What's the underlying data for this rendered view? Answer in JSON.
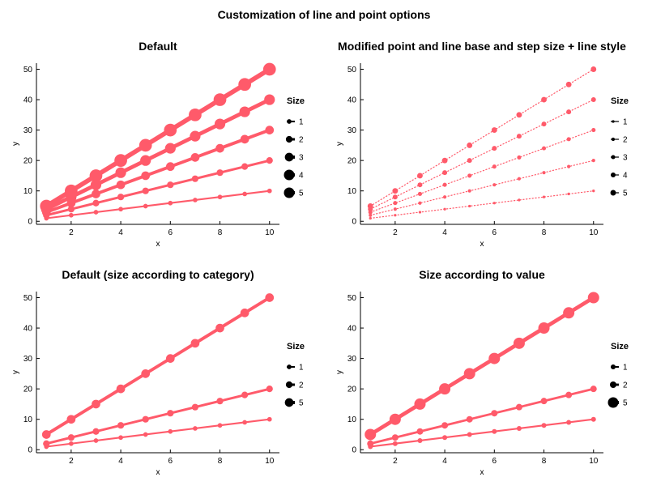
{
  "title": "Customization of line and point options",
  "colors": {
    "series": "#ff5a6a",
    "axis": "#000000",
    "legend_marker": "#000000"
  },
  "chart_data": [
    {
      "type": "line",
      "title": "Default",
      "xlabel": "x",
      "ylabel": "y",
      "xlim": [
        0.6,
        10.4
      ],
      "ylim": [
        -1,
        52
      ],
      "xticks": [
        2,
        4,
        6,
        8,
        10
      ],
      "yticks": [
        0,
        10,
        20,
        30,
        40,
        50
      ],
      "grid": false,
      "x": [
        1,
        2,
        3,
        4,
        5,
        6,
        7,
        8,
        9,
        10
      ],
      "line_style": "solid",
      "legend": {
        "title": "Size",
        "position": "right",
        "entries": [
          "1",
          "2",
          "3",
          "4",
          "5"
        ],
        "sizes": [
          1,
          2,
          3,
          4,
          5
        ]
      },
      "series": [
        {
          "size": 1,
          "values": [
            1,
            2,
            3,
            4,
            5,
            6,
            7,
            8,
            9,
            10
          ]
        },
        {
          "size": 2,
          "values": [
            2,
            4,
            6,
            8,
            10,
            12,
            14,
            16,
            18,
            20
          ]
        },
        {
          "size": 3,
          "values": [
            3,
            6,
            9,
            12,
            15,
            18,
            21,
            24,
            27,
            30
          ]
        },
        {
          "size": 4,
          "values": [
            4,
            8,
            12,
            16,
            20,
            24,
            28,
            32,
            36,
            40
          ]
        },
        {
          "size": 5,
          "values": [
            5,
            10,
            15,
            20,
            25,
            30,
            35,
            40,
            45,
            50
          ]
        }
      ]
    },
    {
      "type": "line",
      "title": "Modified point and line base and step size + line style",
      "xlabel": "x",
      "ylabel": "y",
      "xlim": [
        0.6,
        10.4
      ],
      "ylim": [
        -1,
        52
      ],
      "xticks": [
        2,
        4,
        6,
        8,
        10
      ],
      "yticks": [
        0,
        10,
        20,
        30,
        40,
        50
      ],
      "grid": false,
      "x": [
        1,
        2,
        3,
        4,
        5,
        6,
        7,
        8,
        9,
        10
      ],
      "line_style": "dotted",
      "legend": {
        "title": "Size",
        "position": "right",
        "entries": [
          "1",
          "2",
          "3",
          "4",
          "5"
        ],
        "sizes": [
          1,
          2,
          3,
          4,
          5
        ]
      },
      "series": [
        {
          "size": 1,
          "values": [
            1,
            2,
            3,
            4,
            5,
            6,
            7,
            8,
            9,
            10
          ]
        },
        {
          "size": 2,
          "values": [
            2,
            4,
            6,
            8,
            10,
            12,
            14,
            16,
            18,
            20
          ]
        },
        {
          "size": 3,
          "values": [
            3,
            6,
            9,
            12,
            15,
            18,
            21,
            24,
            27,
            30
          ]
        },
        {
          "size": 4,
          "values": [
            4,
            8,
            12,
            16,
            20,
            24,
            28,
            32,
            36,
            40
          ]
        },
        {
          "size": 5,
          "values": [
            5,
            10,
            15,
            20,
            25,
            30,
            35,
            40,
            45,
            50
          ]
        }
      ]
    },
    {
      "type": "line",
      "title": "Default (size according to category)",
      "xlabel": "x",
      "ylabel": "y",
      "xlim": [
        0.6,
        10.4
      ],
      "ylim": [
        -1,
        52
      ],
      "xticks": [
        2,
        4,
        6,
        8,
        10
      ],
      "yticks": [
        0,
        10,
        20,
        30,
        40,
        50
      ],
      "grid": false,
      "x": [
        1,
        2,
        3,
        4,
        5,
        6,
        7,
        8,
        9,
        10
      ],
      "line_style": "solid",
      "legend": {
        "title": "Size",
        "position": "right",
        "entries": [
          "1",
          "2",
          "5"
        ],
        "sizes": [
          1,
          2,
          3
        ]
      },
      "series": [
        {
          "size": 1,
          "values": [
            1,
            2,
            3,
            4,
            5,
            6,
            7,
            8,
            9,
            10
          ]
        },
        {
          "size": 2,
          "values": [
            2,
            4,
            6,
            8,
            10,
            12,
            14,
            16,
            18,
            20
          ]
        },
        {
          "size": 3,
          "values": [
            5,
            10,
            15,
            20,
            25,
            30,
            35,
            40,
            45,
            50
          ]
        }
      ]
    },
    {
      "type": "line",
      "title": "Size according to value",
      "xlabel": "x",
      "ylabel": "y",
      "xlim": [
        0.6,
        10.4
      ],
      "ylim": [
        -1,
        52
      ],
      "xticks": [
        2,
        4,
        6,
        8,
        10
      ],
      "yticks": [
        0,
        10,
        20,
        30,
        40,
        50
      ],
      "grid": false,
      "x": [
        1,
        2,
        3,
        4,
        5,
        6,
        7,
        8,
        9,
        10
      ],
      "line_style": "solid",
      "legend": {
        "title": "Size",
        "position": "right",
        "entries": [
          "1",
          "2",
          "5"
        ],
        "sizes": [
          1,
          2,
          5
        ]
      },
      "series": [
        {
          "size": 1,
          "values": [
            1,
            2,
            3,
            4,
            5,
            6,
            7,
            8,
            9,
            10
          ]
        },
        {
          "size": 2,
          "values": [
            2,
            4,
            6,
            8,
            10,
            12,
            14,
            16,
            18,
            20
          ]
        },
        {
          "size": 5,
          "values": [
            5,
            10,
            15,
            20,
            25,
            30,
            35,
            40,
            45,
            50
          ]
        }
      ]
    }
  ]
}
